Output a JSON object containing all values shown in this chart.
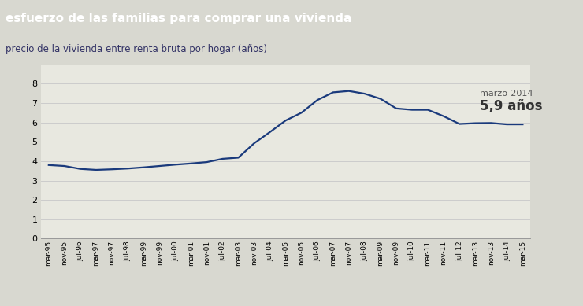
{
  "title": "esfuerzo de las familias para comprar una vivienda",
  "subtitle": "precio de la vivienda entre renta bruta por hogar (años)",
  "annotation_label": "marzo-2014",
  "annotation_value": "5,9 años",
  "line_color": "#1a3a7c",
  "bg_title_color": "#555555",
  "bg_fig_color": "#d8d8d0",
  "bg_plot_color": "#e8e8e0",
  "ylim": [
    0,
    9
  ],
  "yticks": [
    0,
    1,
    2,
    3,
    4,
    5,
    6,
    7,
    8
  ],
  "x_labels": [
    "mar-95",
    "nov-95",
    "jul-96",
    "mar-97",
    "nov-97",
    "jul-98",
    "mar-99",
    "nov-99",
    "jul-00",
    "mar-01",
    "nov-01",
    "jul-02",
    "mar-03",
    "nov-03",
    "jul-04",
    "mar-05",
    "nov-05",
    "jul-06",
    "mar-07",
    "nov-07",
    "jul-08",
    "mar-09",
    "nov-09",
    "jul-10",
    "mar-11",
    "nov-11",
    "jul-12",
    "mar-13",
    "nov-13",
    "jul-14",
    "mar-15"
  ],
  "values": [
    3.8,
    3.75,
    3.6,
    3.55,
    3.58,
    3.62,
    3.68,
    3.75,
    3.82,
    3.88,
    3.95,
    4.12,
    4.18,
    4.92,
    5.5,
    6.1,
    6.5,
    7.15,
    7.55,
    7.62,
    7.48,
    7.22,
    6.72,
    6.65,
    6.65,
    6.32,
    5.92,
    5.96,
    5.97,
    5.9,
    5.9
  ]
}
